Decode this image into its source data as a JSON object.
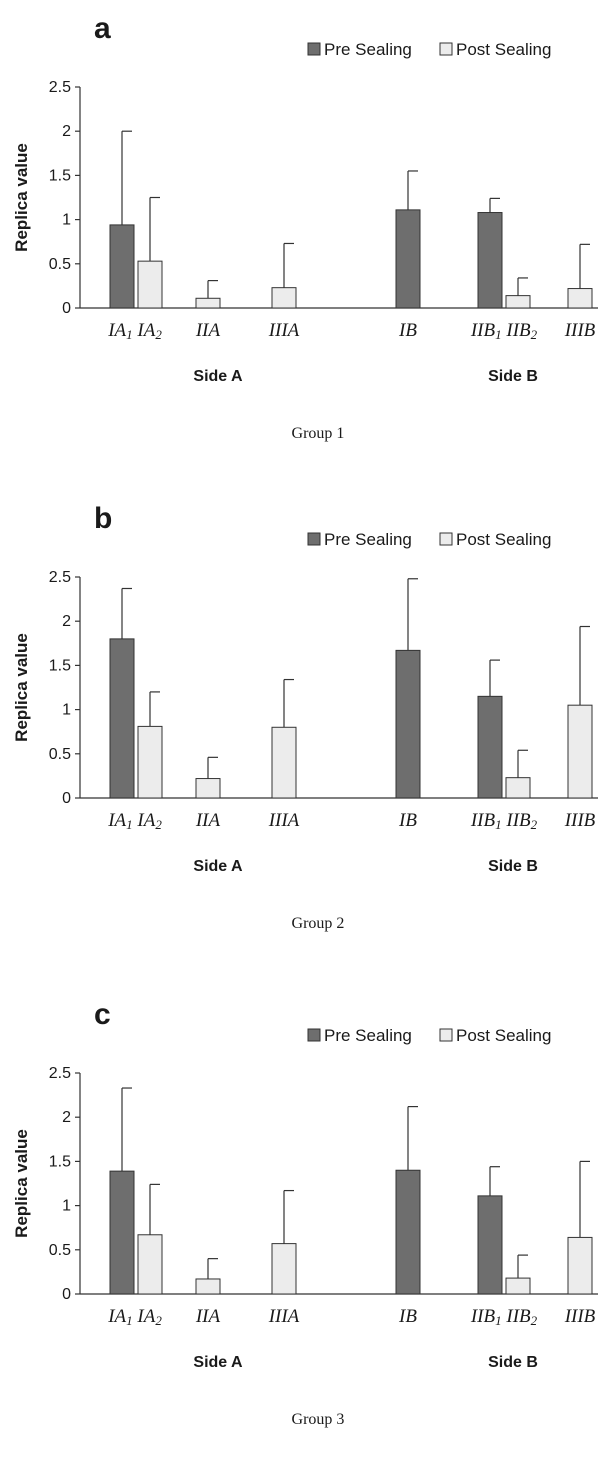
{
  "colors": {
    "pre": "#6e6e6e",
    "post": "#ececec",
    "ink": "#1a1a1a"
  },
  "chart_data": [
    {
      "type": "bar",
      "panel_label": "a",
      "caption": "Group 1",
      "ylabel": "Replica value",
      "ylim": [
        0,
        2.5
      ],
      "yticks": [
        "0",
        "0.5",
        "1",
        "1.5",
        "2",
        "2.5"
      ],
      "legend": [
        "Pre Sealing",
        "Post Sealing"
      ],
      "legend_position": "top-right",
      "sides": [
        "Side A",
        "Side B"
      ],
      "x_tick_labels": [
        "IA1 IA2",
        "IIA",
        "IIIA",
        "IB",
        "IIB1 IIB2",
        "IIIB"
      ],
      "categories": [
        "IA1",
        "IA2",
        "IIA",
        "IIIA",
        "IB",
        "IIB1",
        "IIB2",
        "IIIB"
      ],
      "series": [
        {
          "name": "Pre Sealing",
          "values": [
            0.94,
            0,
            0,
            0,
            1.11,
            1.08,
            0,
            0
          ],
          "error": [
            1.06,
            0,
            0,
            0,
            0.44,
            0.16,
            0,
            0
          ]
        },
        {
          "name": "Post Sealing",
          "values": [
            0,
            0.53,
            0.11,
            0.23,
            0,
            0,
            0.14,
            0.22
          ],
          "error": [
            0,
            0.72,
            0.2,
            0.5,
            0,
            0,
            0.2,
            0.5
          ]
        }
      ]
    },
    {
      "type": "bar",
      "panel_label": "b",
      "caption": "Group 2",
      "ylabel": "Replica value",
      "ylim": [
        0,
        2.5
      ],
      "yticks": [
        "0",
        "0.5",
        "1",
        "1.5",
        "2",
        "2.5"
      ],
      "legend": [
        "Pre Sealing",
        "Post Sealing"
      ],
      "legend_position": "top-right",
      "sides": [
        "Side A",
        "Side B"
      ],
      "x_tick_labels": [
        "IA1 IA2",
        "IIA",
        "IIIA",
        "IB",
        "IIB1 IIB2",
        "IIIB"
      ],
      "categories": [
        "IA1",
        "IA2",
        "IIA",
        "IIIA",
        "IB",
        "IIB1",
        "IIB2",
        "IIIB"
      ],
      "series": [
        {
          "name": "Pre Sealing",
          "values": [
            1.8,
            0,
            0,
            0,
            1.67,
            1.15,
            0,
            0
          ],
          "error": [
            0.57,
            0,
            0,
            0,
            0.81,
            0.41,
            0,
            0
          ]
        },
        {
          "name": "Post Sealing",
          "values": [
            0,
            0.81,
            0.22,
            0.8,
            0,
            0,
            0.23,
            1.05
          ],
          "error": [
            0,
            0.39,
            0.24,
            0.54,
            0,
            0,
            0.31,
            0.89
          ]
        }
      ]
    },
    {
      "type": "bar",
      "panel_label": "c",
      "caption": "Group 3",
      "ylabel": "Replica value",
      "ylim": [
        0,
        2.5
      ],
      "yticks": [
        "0",
        "0.5",
        "1",
        "1.5",
        "2",
        "2.5"
      ],
      "legend": [
        "Pre Sealing",
        "Post Sealing"
      ],
      "legend_position": "top-right",
      "sides": [
        "Side A",
        "Side B"
      ],
      "x_tick_labels": [
        "IA1 IA2",
        "IIA",
        "IIIA",
        "IB",
        "IIB1 IIB2",
        "IIIB"
      ],
      "categories": [
        "IA1",
        "IA2",
        "IIA",
        "IIIA",
        "IB",
        "IIB1",
        "IIB2",
        "IIIB"
      ],
      "series": [
        {
          "name": "Pre Sealing",
          "values": [
            1.39,
            0,
            0,
            0,
            1.4,
            1.11,
            0,
            0
          ],
          "error": [
            0.94,
            0,
            0,
            0,
            0.72,
            0.33,
            0,
            0
          ]
        },
        {
          "name": "Post Sealing",
          "values": [
            0,
            0.67,
            0.17,
            0.57,
            0,
            0,
            0.18,
            0.64
          ],
          "error": [
            0,
            0.57,
            0.23,
            0.6,
            0,
            0,
            0.26,
            0.86
          ]
        }
      ]
    }
  ]
}
